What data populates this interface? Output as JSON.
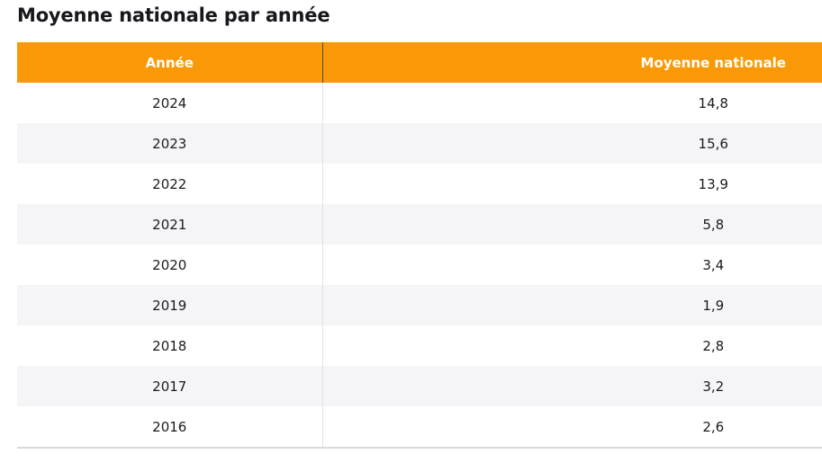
{
  "page": {
    "title": "Moyenne nationale par année"
  },
  "table": {
    "columns": [
      {
        "key": "annee",
        "label": "Année"
      },
      {
        "key": "moyenne",
        "label": "Moyenne nationale"
      }
    ],
    "rows": [
      {
        "annee": "2024",
        "moyenne": "14,8"
      },
      {
        "annee": "2023",
        "moyenne": "15,6"
      },
      {
        "annee": "2022",
        "moyenne": "13,9"
      },
      {
        "annee": "2021",
        "moyenne": "5,8"
      },
      {
        "annee": "2020",
        "moyenne": "3,4"
      },
      {
        "annee": "2019",
        "moyenne": "1,9"
      },
      {
        "annee": "2018",
        "moyenne": "2,8"
      },
      {
        "annee": "2017",
        "moyenne": "3,2"
      },
      {
        "annee": "2016",
        "moyenne": "2,6"
      }
    ]
  },
  "colors": {
    "header_bg": "#FA9908",
    "header_text": "#FFFFFF",
    "stripe_bg": "#F5F5F7",
    "text": "#1B1B20",
    "divider_header": "#4D4D4D",
    "divider_body": "#E3E3E6",
    "border_bottom": "#D9D9DD"
  },
  "chart_data": {
    "type": "table",
    "title": "Moyenne nationale par année",
    "columns": [
      "Année",
      "Moyenne nationale"
    ],
    "categories": [
      "2024",
      "2023",
      "2022",
      "2021",
      "2020",
      "2019",
      "2018",
      "2017",
      "2016"
    ],
    "values": [
      14.8,
      15.6,
      13.9,
      5.8,
      3.4,
      1.9,
      2.8,
      3.2,
      2.6
    ],
    "value_format": "decimal-comma",
    "layout": {
      "striped": true,
      "header_position": "top",
      "year_column_align": "center",
      "value_column_align": "center",
      "table_clipped_right": true
    }
  }
}
